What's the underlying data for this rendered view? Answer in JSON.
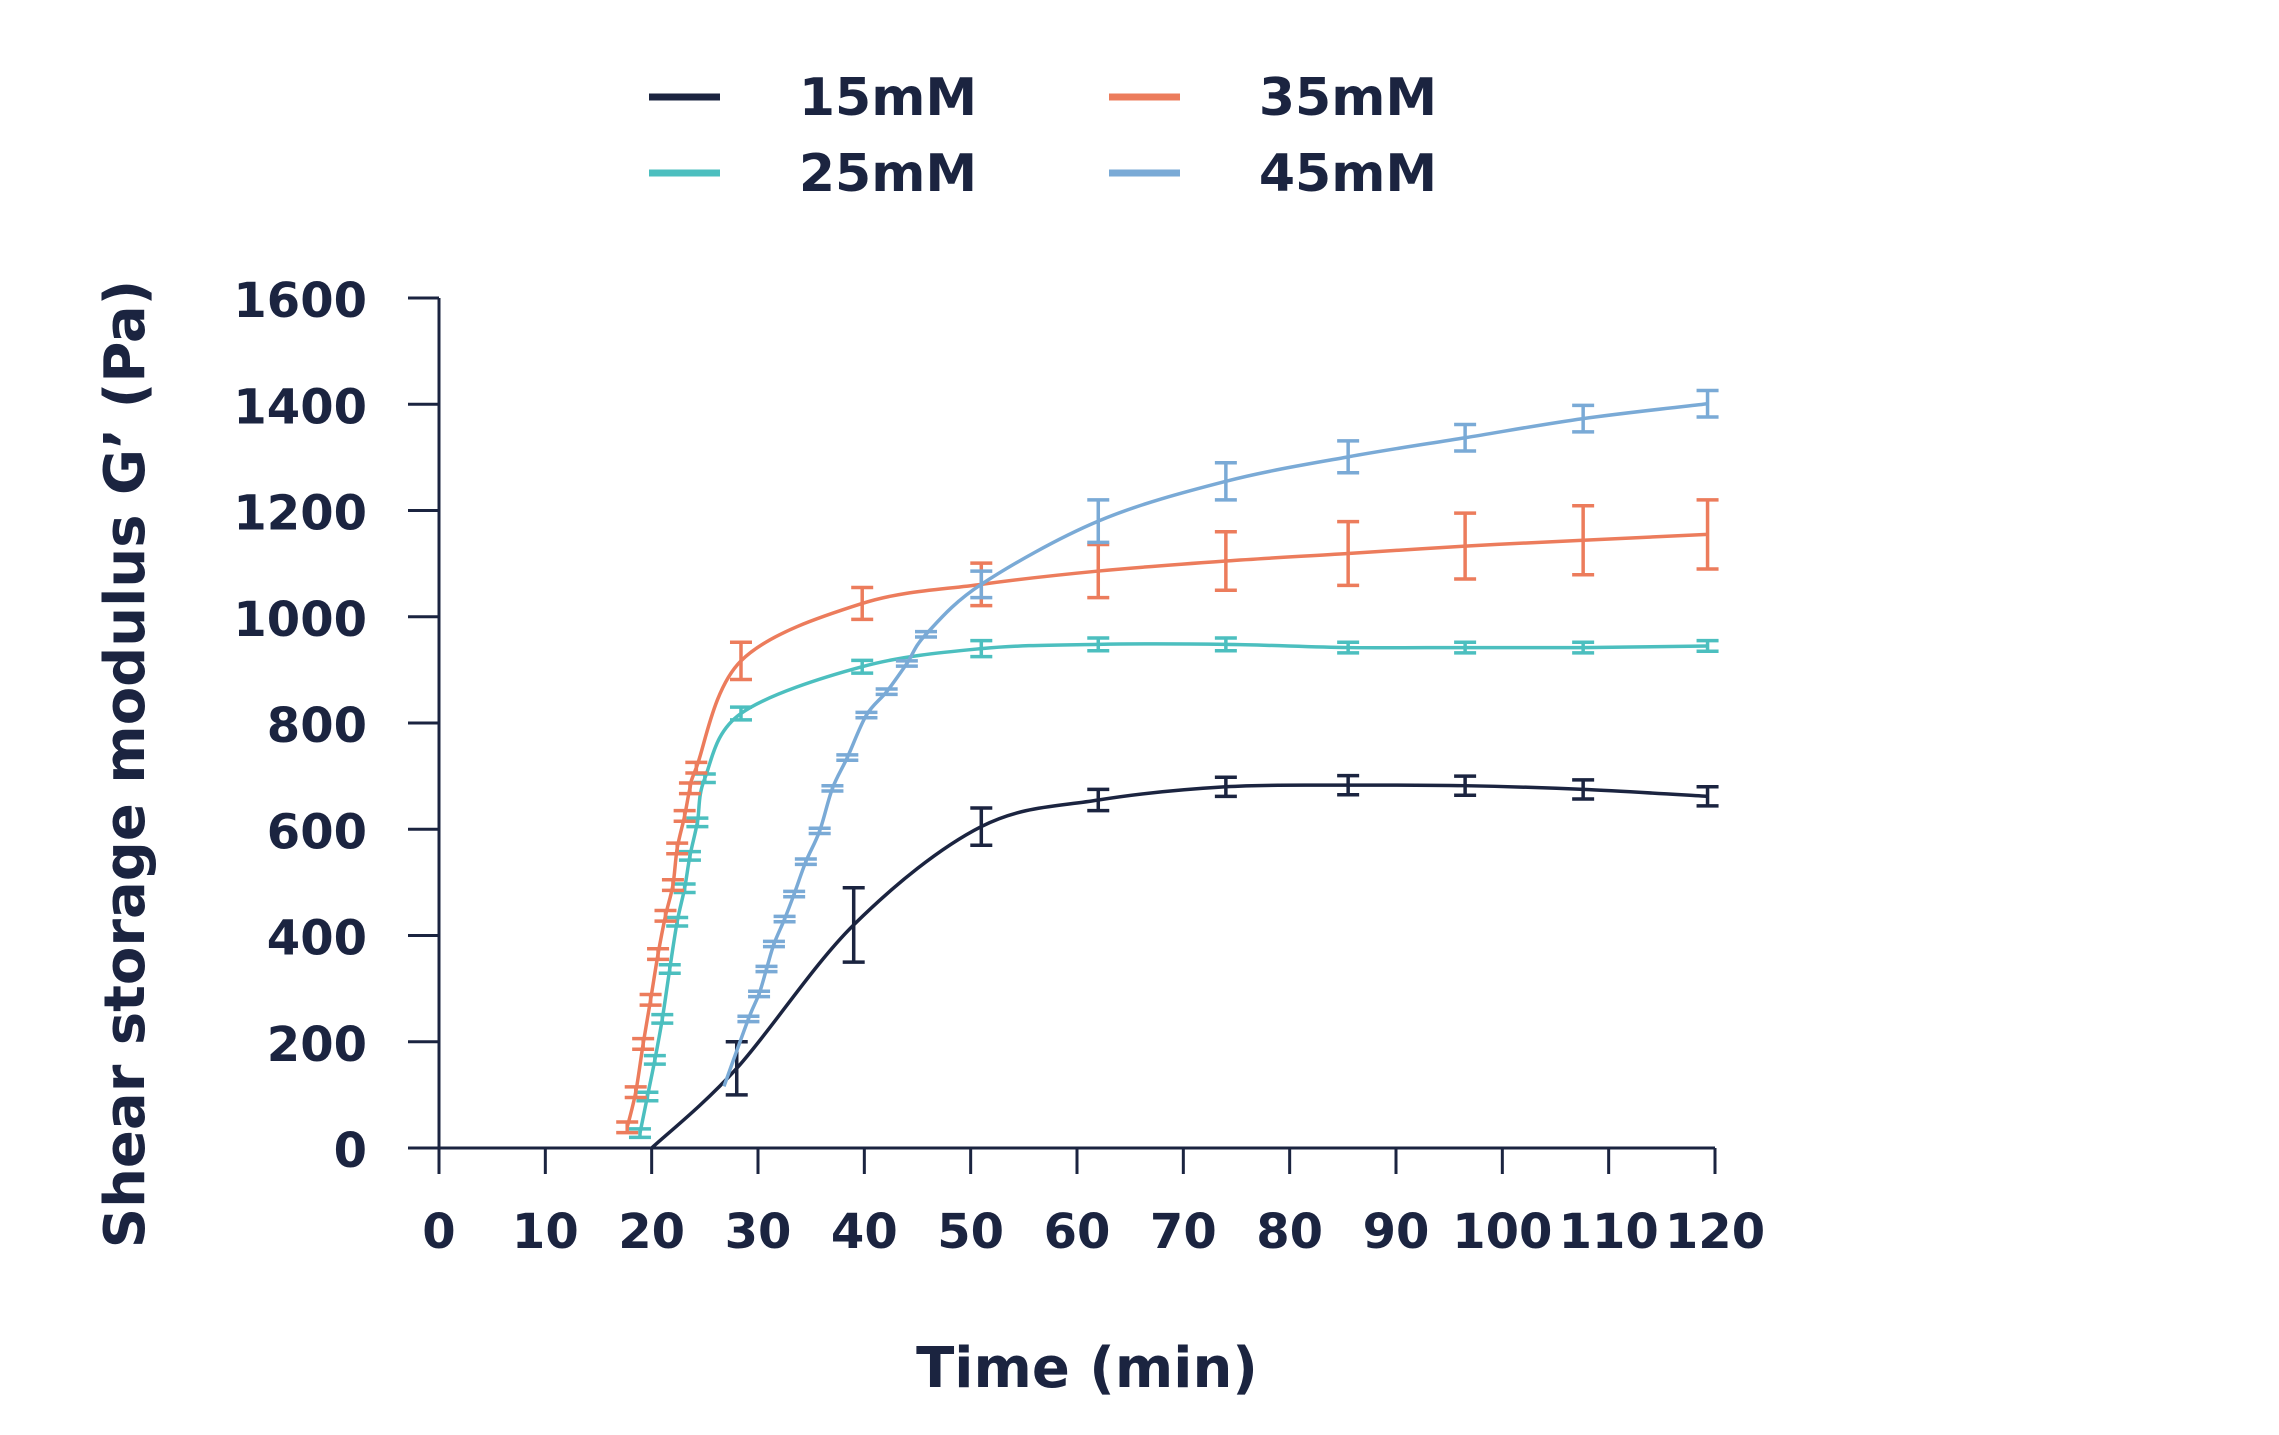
{
  "chart_data": {
    "type": "line",
    "xlabel": "Time (min)",
    "ylabel": "Shear storage modulus G’ (Pa)",
    "xlim": [
      0,
      120
    ],
    "xticks": [
      0,
      10,
      20,
      30,
      40,
      50,
      60,
      70,
      80,
      90,
      100,
      110,
      120
    ],
    "ylim": [
      0,
      1600
    ],
    "yticks": [
      0,
      200,
      400,
      600,
      800,
      1000,
      1200,
      1400,
      1600
    ],
    "grid": false,
    "series": [
      {
        "name": "15mM",
        "color": "#1b2440",
        "x": [
          20,
          28,
          39,
          51,
          62,
          74,
          85.5,
          96.5,
          107.6,
          119.3
        ],
        "values": [
          0,
          150,
          420,
          605,
          655,
          680,
          683,
          682,
          675,
          662
        ],
        "errors": [
          null,
          50,
          70,
          35,
          20,
          18,
          18,
          18,
          18,
          18
        ]
      },
      {
        "name": "25mM",
        "color": "#4cbfbf",
        "x": [
          18.9,
          19.6,
          20.3,
          21,
          21.7,
          22.4,
          23.1,
          23.6,
          24.3,
          25,
          28.4,
          39.8,
          51,
          62,
          74,
          85.5,
          96.5,
          107.6,
          119.3
        ],
        "values": [
          28,
          97,
          166,
          243,
          337,
          426,
          489,
          550,
          613,
          696,
          818,
          906,
          940,
          948,
          948,
          942,
          942,
          942,
          945
        ],
        "errors": [
          8,
          8,
          8,
          8,
          8,
          8,
          8,
          8,
          8,
          8,
          12,
          12,
          15,
          12,
          12,
          10,
          10,
          10,
          10
        ]
      },
      {
        "name": "35mM",
        "color": "#ec7c5c",
        "x": [
          17.7,
          18.5,
          19.2,
          19.9,
          20.6,
          21.3,
          22,
          22.4,
          23.1,
          23.6,
          24.2,
          28.4,
          39.8,
          51,
          62,
          74,
          85.5,
          96.5,
          107.6,
          119.3
        ],
        "values": [
          39,
          105,
          196,
          279,
          365,
          437,
          495,
          564,
          625,
          677,
          716,
          917,
          1025,
          1061,
          1086,
          1105,
          1119,
          1133,
          1144,
          1155
        ],
        "errors": [
          10,
          10,
          10,
          10,
          10,
          10,
          10,
          10,
          10,
          10,
          10,
          35,
          30,
          40,
          50,
          55,
          60,
          62,
          65,
          65
        ]
      },
      {
        "name": "45mM",
        "color": "#7aaad6",
        "x": [
          26.8,
          29.1,
          30.1,
          30.8,
          31.5,
          32.5,
          33.4,
          34.5,
          35.8,
          37,
          38.4,
          40.2,
          42.1,
          44,
          45.8,
          51,
          62,
          74,
          85.5,
          96.5,
          107.6,
          119.3
        ],
        "values": [
          116,
          243,
          290,
          337,
          384,
          431,
          478,
          539,
          597,
          677,
          735,
          815,
          859,
          912,
          967,
          1061,
          1180,
          1255,
          1301,
          1337,
          1373,
          1401
        ],
        "errors": [
          null,
          5,
          5,
          5,
          5,
          5,
          5,
          5,
          5,
          5,
          5,
          5,
          5,
          5,
          5,
          25,
          40,
          35,
          30,
          25,
          25,
          25
        ]
      }
    ]
  }
}
